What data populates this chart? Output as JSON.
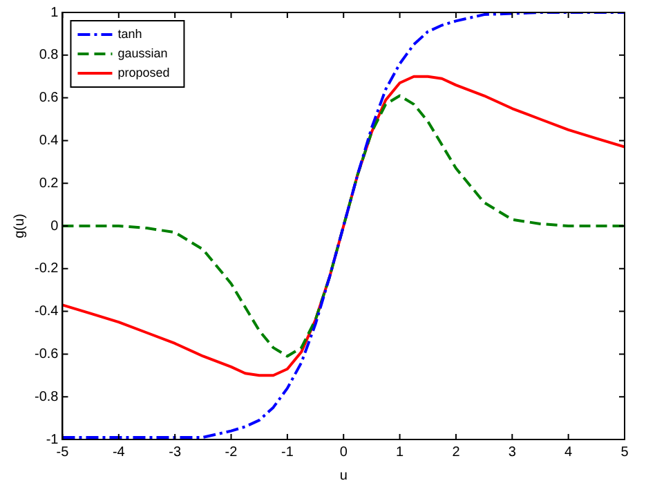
{
  "chart_data": {
    "type": "line",
    "xlabel": "u",
    "ylabel": "g(u)",
    "x": [
      -5,
      -4.5,
      -4,
      -3.5,
      -3,
      -2.5,
      -2,
      -1.75,
      -1.5,
      -1.25,
      -1,
      -0.75,
      -0.5,
      -0.25,
      0,
      0.25,
      0.5,
      0.75,
      1,
      1.25,
      1.5,
      1.75,
      2,
      2.5,
      3,
      3.5,
      4,
      4.5,
      5
    ],
    "series": [
      {
        "name": "tanh",
        "color": "#0000ff",
        "line_style": "dashdot",
        "values": [
          -0.99,
          -0.99,
          -0.99,
          -0.99,
          -0.99,
          -0.99,
          -0.96,
          -0.94,
          -0.91,
          -0.85,
          -0.76,
          -0.64,
          -0.46,
          -0.24,
          0,
          0.24,
          0.46,
          0.64,
          0.76,
          0.85,
          0.91,
          0.94,
          0.96,
          0.99,
          0.995,
          1,
          1,
          1,
          1
        ]
      },
      {
        "name": "gaussian",
        "color": "#008000",
        "line_style": "dashed",
        "values": [
          0,
          0,
          0,
          -0.01,
          -0.03,
          -0.11,
          -0.27,
          -0.38,
          -0.49,
          -0.57,
          -0.61,
          -0.57,
          -0.44,
          -0.24,
          0,
          0.24,
          0.44,
          0.57,
          0.61,
          0.57,
          0.49,
          0.38,
          0.27,
          0.11,
          0.03,
          0.01,
          0,
          0,
          0
        ]
      },
      {
        "name": "proposed",
        "color": "#ff0000",
        "line_style": "solid",
        "values": [
          -0.37,
          -0.41,
          -0.45,
          -0.5,
          -0.55,
          -0.61,
          -0.66,
          -0.69,
          -0.7,
          -0.7,
          -0.67,
          -0.59,
          -0.44,
          -0.24,
          0,
          0.24,
          0.44,
          0.59,
          0.67,
          0.7,
          0.7,
          0.69,
          0.66,
          0.61,
          0.55,
          0.5,
          0.45,
          0.41,
          0.37
        ]
      }
    ],
    "xlim": [
      -5,
      5
    ],
    "xticks": [
      -5,
      -4,
      -3,
      -2,
      -1,
      0,
      1,
      2,
      3,
      4,
      5
    ],
    "ylim": [
      -1,
      1
    ],
    "yticks": [
      -1,
      -0.8,
      -0.6,
      -0.4,
      -0.2,
      0,
      0.2,
      0.4,
      0.6,
      0.8,
      1
    ],
    "legend": "top left",
    "grid": false,
    "marker": "none"
  }
}
